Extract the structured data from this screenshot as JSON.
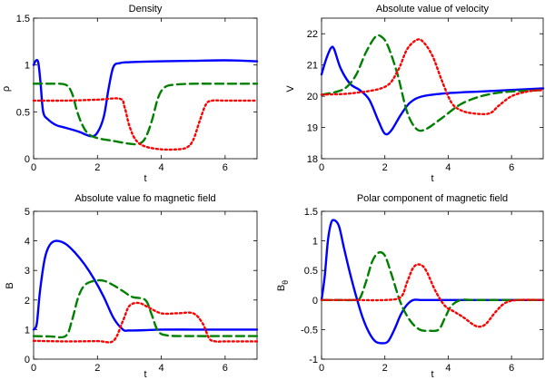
{
  "chart_data": [
    {
      "type": "line",
      "title": "Density",
      "xlabel": "t",
      "ylabel": "ρ",
      "xlim": [
        0,
        7
      ],
      "ylim": [
        0,
        1.5
      ],
      "xticks": [
        "0",
        "2",
        "4",
        "6"
      ],
      "yticks": [
        "0",
        "0.5",
        "1",
        "1.5"
      ],
      "series": [
        {
          "name": "solid",
          "color": "#0000ff",
          "dash": "solid",
          "x": [
            0,
            0.08,
            0.15,
            0.22,
            0.3,
            0.45,
            0.7,
            1.0,
            1.4,
            1.8,
            2.0,
            2.2,
            2.35,
            2.5,
            2.7,
            3.0,
            4.0,
            5.0,
            6.0,
            7.0
          ],
          "y": [
            1.0,
            1.05,
            1.02,
            0.8,
            0.5,
            0.42,
            0.36,
            0.33,
            0.29,
            0.24,
            0.28,
            0.45,
            0.75,
            0.98,
            1.02,
            1.03,
            1.04,
            1.045,
            1.05,
            1.04
          ]
        },
        {
          "name": "dashed",
          "color": "#008000",
          "dash": "dashed",
          "x": [
            0,
            0.5,
            1.0,
            1.2,
            1.35,
            1.5,
            1.7,
            2.0,
            2.5,
            3.0,
            3.3,
            3.5,
            3.7,
            3.9,
            4.1,
            4.4,
            5.0,
            6.0,
            7.0
          ],
          "y": [
            0.8,
            0.8,
            0.79,
            0.7,
            0.52,
            0.38,
            0.27,
            0.22,
            0.19,
            0.16,
            0.16,
            0.22,
            0.4,
            0.65,
            0.76,
            0.79,
            0.8,
            0.8,
            0.8
          ]
        },
        {
          "name": "dotted",
          "color": "#ff0000",
          "dash": "dotted",
          "x": [
            0,
            1.0,
            2.0,
            2.7,
            2.85,
            3.0,
            3.2,
            3.5,
            4.0,
            4.5,
            4.8,
            5.0,
            5.2,
            5.4,
            5.6,
            6.0,
            7.0
          ],
          "y": [
            0.62,
            0.62,
            0.63,
            0.64,
            0.55,
            0.35,
            0.2,
            0.13,
            0.1,
            0.1,
            0.12,
            0.2,
            0.4,
            0.58,
            0.62,
            0.62,
            0.62
          ]
        }
      ]
    },
    {
      "type": "line",
      "title": "Absolute value of velocity",
      "xlabel": "t",
      "ylabel": "V",
      "xlim": [
        0,
        7
      ],
      "ylim": [
        18,
        22.5
      ],
      "xticks": [
        "0",
        "2",
        "4",
        "6"
      ],
      "yticks": [
        "18",
        "19",
        "20",
        "21",
        "22"
      ],
      "series": [
        {
          "name": "solid",
          "color": "#0000ff",
          "dash": "solid",
          "x": [
            0,
            0.15,
            0.3,
            0.4,
            0.6,
            0.9,
            1.2,
            1.5,
            1.8,
            2.0,
            2.2,
            2.5,
            2.8,
            3.2,
            4.0,
            5.0,
            6.0,
            7.0
          ],
          "y": [
            20.7,
            21.2,
            21.55,
            21.5,
            20.9,
            20.4,
            20.2,
            19.9,
            19.2,
            18.8,
            18.9,
            19.4,
            19.8,
            20.0,
            20.1,
            20.15,
            20.2,
            20.25
          ]
        },
        {
          "name": "dashed",
          "color": "#008000",
          "dash": "dashed",
          "x": [
            0,
            0.5,
            0.8,
            1.1,
            1.4,
            1.7,
            1.9,
            2.1,
            2.4,
            2.7,
            3.0,
            3.3,
            3.8,
            4.5,
            5.5,
            7.0
          ],
          "y": [
            20.05,
            20.15,
            20.3,
            20.7,
            21.4,
            21.9,
            21.9,
            21.6,
            20.7,
            19.5,
            18.95,
            18.95,
            19.3,
            19.8,
            20.1,
            20.2
          ]
        },
        {
          "name": "dotted",
          "color": "#ff0000",
          "dash": "dotted",
          "x": [
            0,
            1.0,
            2.0,
            2.4,
            2.7,
            3.0,
            3.2,
            3.5,
            3.8,
            4.1,
            4.4,
            4.8,
            5.3,
            5.6,
            6.0,
            6.5,
            7.0
          ],
          "y": [
            20.05,
            20.1,
            20.3,
            20.8,
            21.5,
            21.8,
            21.75,
            21.3,
            20.5,
            19.8,
            19.55,
            19.45,
            19.45,
            19.7,
            20.0,
            20.15,
            20.2
          ]
        }
      ]
    },
    {
      "type": "line",
      "title": "Absolute value fo magnetic field",
      "xlabel": "t",
      "ylabel": "B",
      "xlim": [
        0,
        7
      ],
      "ylim": [
        0,
        5
      ],
      "xticks": [
        "0",
        "2",
        "4",
        "6"
      ],
      "yticks": [
        "0",
        "1",
        "2",
        "3",
        "4",
        "5"
      ],
      "series": [
        {
          "name": "solid",
          "color": "#0000ff",
          "dash": "solid",
          "x": [
            0,
            0.1,
            0.2,
            0.35,
            0.5,
            0.7,
            1.0,
            1.3,
            1.6,
            1.9,
            2.2,
            2.5,
            2.8,
            3.0,
            3.5,
            4.0,
            5.0,
            6.0,
            7.0
          ],
          "y": [
            1.0,
            1.2,
            2.3,
            3.4,
            3.85,
            4.0,
            3.9,
            3.6,
            3.2,
            2.7,
            2.1,
            1.4,
            1.0,
            0.97,
            0.98,
            1.0,
            1.0,
            1.0,
            1.0
          ]
        },
        {
          "name": "dashed",
          "color": "#008000",
          "dash": "dashed",
          "x": [
            0,
            0.5,
            1.0,
            1.2,
            1.4,
            1.6,
            1.9,
            2.2,
            2.5,
            2.8,
            3.1,
            3.5,
            3.7,
            3.9,
            4.2,
            5.0,
            6.0,
            7.0
          ],
          "y": [
            0.78,
            0.77,
            0.78,
            1.3,
            2.1,
            2.5,
            2.65,
            2.65,
            2.5,
            2.3,
            2.1,
            2.0,
            1.5,
            0.95,
            0.8,
            0.78,
            0.78,
            0.78
          ]
        },
        {
          "name": "dotted",
          "color": "#ff0000",
          "dash": "dotted",
          "x": [
            0,
            1.0,
            2.0,
            2.5,
            2.8,
            3.0,
            3.3,
            3.6,
            4.0,
            4.5,
            5.0,
            5.3,
            5.5,
            5.7,
            6.0,
            7.0
          ],
          "y": [
            0.62,
            0.6,
            0.61,
            0.62,
            1.3,
            1.8,
            1.9,
            1.75,
            1.55,
            1.55,
            1.55,
            1.2,
            0.7,
            0.6,
            0.6,
            0.6
          ]
        }
      ]
    },
    {
      "type": "line",
      "title": "Polar component of magnetic field",
      "xlabel": "t",
      "ylabel": "B",
      "ylabel_subscript": "θ",
      "xlim": [
        0,
        7
      ],
      "ylim": [
        -1,
        1.5
      ],
      "xticks": [
        "0",
        "2",
        "4",
        "6"
      ],
      "yticks": [
        "-1",
        "-0.5",
        "0",
        "0.5",
        "1",
        "1.5"
      ],
      "series": [
        {
          "name": "solid",
          "color": "#0000ff",
          "dash": "solid",
          "x": [
            0,
            0.1,
            0.2,
            0.3,
            0.4,
            0.55,
            0.7,
            0.9,
            1.1,
            1.3,
            1.5,
            1.7,
            1.9,
            2.1,
            2.3,
            2.5,
            2.7,
            2.9,
            3.2,
            4.0,
            5.0,
            6.0,
            7.0
          ],
          "y": [
            0.0,
            0.4,
            1.0,
            1.3,
            1.35,
            1.25,
            0.9,
            0.45,
            0.05,
            -0.3,
            -0.55,
            -0.7,
            -0.73,
            -0.7,
            -0.5,
            -0.25,
            -0.08,
            0.0,
            0.0,
            0.0,
            0.0,
            0.0,
            0.0
          ]
        },
        {
          "name": "dashed",
          "color": "#008000",
          "dash": "dashed",
          "x": [
            0,
            0.5,
            1.0,
            1.2,
            1.4,
            1.6,
            1.8,
            2.0,
            2.2,
            2.5,
            2.8,
            3.1,
            3.4,
            3.7,
            3.9,
            4.1,
            4.4,
            4.8,
            5.5,
            7.0
          ],
          "y": [
            0.0,
            0.0,
            0.0,
            0.02,
            0.3,
            0.65,
            0.8,
            0.75,
            0.45,
            -0.05,
            -0.35,
            -0.5,
            -0.52,
            -0.5,
            -0.3,
            -0.1,
            0.0,
            0.0,
            0.0,
            0.0
          ]
        },
        {
          "name": "dotted",
          "color": "#ff0000",
          "dash": "dotted",
          "x": [
            0,
            1.0,
            2.0,
            2.5,
            2.7,
            2.9,
            3.1,
            3.3,
            3.6,
            3.9,
            4.2,
            4.5,
            4.8,
            5.0,
            5.2,
            5.5,
            5.8,
            6.2,
            7.0
          ],
          "y": [
            0.0,
            0.0,
            0.0,
            0.05,
            0.3,
            0.55,
            0.6,
            0.5,
            0.15,
            -0.1,
            -0.2,
            -0.3,
            -0.42,
            -0.45,
            -0.4,
            -0.2,
            -0.05,
            0.0,
            0.0
          ]
        }
      ]
    }
  ]
}
